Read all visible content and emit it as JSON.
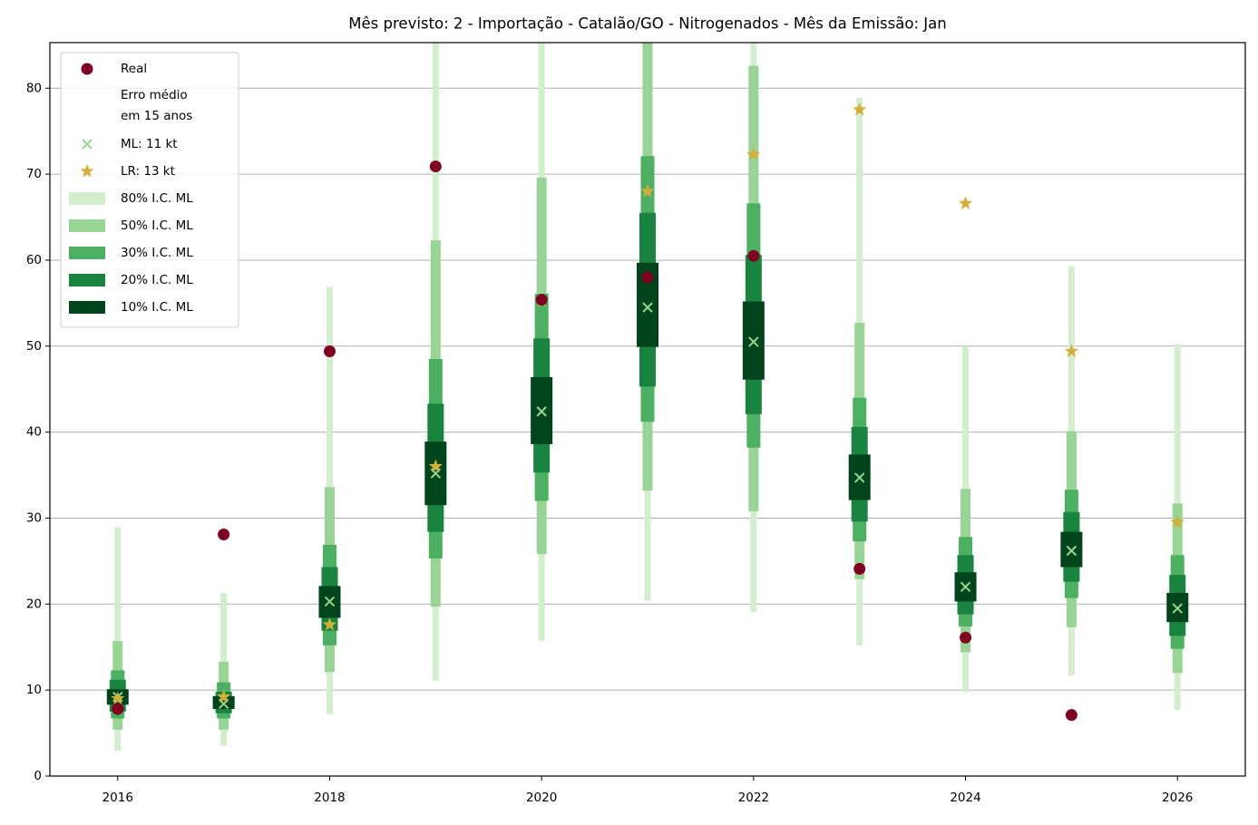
{
  "chart_data": {
    "type": "interval",
    "title": "Mês previsto: 2 - Importação - Catalão/GO - Nitrogenados - Mês da Emissão: Jan",
    "x": [
      2016,
      2017,
      2018,
      2019,
      2020,
      2021,
      2022,
      2023,
      2024,
      2025,
      2026
    ],
    "xlim": [
      2015.36,
      2026.64
    ],
    "xticks": [
      2016,
      2018,
      2020,
      2022,
      2024,
      2026
    ],
    "ylim": [
      0,
      85.3
    ],
    "yticks": [
      0,
      10,
      20,
      30,
      40,
      50,
      60,
      70,
      80
    ],
    "grid": true,
    "legend_position": "upper left",
    "legend_note": [
      "Erro médio",
      "em 15 anos"
    ],
    "intervals": [
      {
        "name": "80% I.C. ML",
        "color": "#d2eecd",
        "low": [
          2.95,
          3.5,
          7.2,
          11.1,
          15.7,
          20.4,
          19.1,
          15.2,
          9.8,
          11.7,
          7.7
        ],
        "high": [
          28.9,
          21.3,
          56.9,
          90,
          95,
          100,
          92,
          78.9,
          50.0,
          59.3,
          50.2
        ]
      },
      {
        "name": "50% I.C. ML",
        "color": "#98d494",
        "low": [
          5.4,
          5.4,
          12.1,
          19.7,
          25.8,
          33.2,
          30.8,
          22.9,
          14.4,
          17.3,
          12.0
        ],
        "high": [
          15.7,
          13.3,
          33.6,
          62.3,
          69.6,
          88,
          82.6,
          52.7,
          33.4,
          40.1,
          31.7
        ]
      },
      {
        "name": "30% I.C. ML",
        "color": "#4cb062",
        "low": [
          6.7,
          6.7,
          15.2,
          25.3,
          32.0,
          41.2,
          38.2,
          27.3,
          17.4,
          20.7,
          14.8
        ],
        "high": [
          12.3,
          10.9,
          26.9,
          48.5,
          56.1,
          72.1,
          66.6,
          44.0,
          27.8,
          33.3,
          25.7
        ]
      },
      {
        "name": "20% I.C. ML",
        "color": "#18843f",
        "low": [
          7.5,
          7.3,
          16.9,
          28.4,
          35.3,
          45.3,
          42.1,
          29.6,
          18.8,
          22.6,
          16.3
        ],
        "high": [
          11.2,
          9.8,
          24.3,
          43.3,
          50.9,
          65.5,
          60.6,
          40.6,
          25.7,
          30.7,
          23.4
        ]
      },
      {
        "name": "10% I.C. ML",
        "color": "#00441b",
        "low": [
          8.3,
          7.8,
          18.4,
          31.5,
          38.6,
          49.9,
          46.1,
          32.1,
          20.3,
          24.3,
          17.9
        ],
        "high": [
          10.1,
          9.3,
          22.1,
          38.9,
          46.4,
          59.7,
          55.2,
          37.4,
          23.7,
          28.4,
          21.3
        ]
      }
    ],
    "series": [
      {
        "name": "Real",
        "marker": "circle",
        "color": "#7f0020",
        "values": [
          7.8,
          28.1,
          49.4,
          70.9,
          55.4,
          58.0,
          60.5,
          24.1,
          16.1,
          7.1,
          null
        ]
      },
      {
        "name": "ML: 11 kt",
        "marker": "x",
        "color": "#98d494",
        "values": [
          9.2,
          8.4,
          20.3,
          35.2,
          42.4,
          54.5,
          50.5,
          34.7,
          22.0,
          26.2,
          19.5
        ]
      },
      {
        "name": "LR: 13 kt",
        "marker": "star",
        "color": "#d4af37",
        "values": [
          9.0,
          9.2,
          17.6,
          36.0,
          55.2,
          68.0,
          72.3,
          77.5,
          66.6,
          49.4,
          29.5
        ]
      }
    ]
  }
}
